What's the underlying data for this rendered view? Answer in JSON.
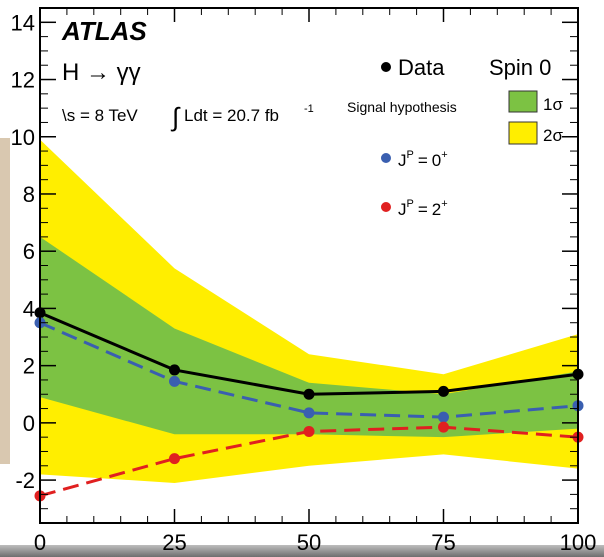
{
  "chart_data": {
    "type": "line",
    "experiment": "ATLAS",
    "process": "H → γγ",
    "energy_text": "\\s = 8 TeV",
    "lumi_text": "Ldt = 20.7 fb",
    "lumi_exp": "-1",
    "spin_label": "Spin 0",
    "signal_hypothesis_label": "Signal hypothesis",
    "x": [
      0,
      25,
      50,
      75,
      100
    ],
    "xlim": [
      0,
      100
    ],
    "ylim": [
      -3.5,
      14.5
    ],
    "x_ticks": [
      "0",
      "25",
      "50",
      "75",
      "100"
    ],
    "y_ticks": [
      "-2",
      "0",
      "2",
      "4",
      "6",
      "8",
      "10",
      "12",
      "14"
    ],
    "series": [
      {
        "name": "Data",
        "values": [
          3.85,
          1.85,
          1.0,
          1.1,
          1.7
        ],
        "color": "#000000",
        "style": "solid"
      },
      {
        "name": "0",
        "sup": "+",
        "values": [
          3.5,
          1.45,
          0.35,
          0.2,
          0.6
        ],
        "color": "#3a5fb0",
        "style": "dashed"
      },
      {
        "name": "2",
        "sup": "+",
        "values": [
          -2.55,
          -1.25,
          -0.3,
          -0.15,
          -0.5
        ],
        "color": "#e02020",
        "style": "dashed"
      }
    ],
    "bands": [
      {
        "name": "2σ",
        "color": "#ffee00",
        "upper": [
          9.9,
          5.4,
          2.4,
          1.7,
          3.1
        ],
        "lower": [
          -1.8,
          -2.1,
          -1.5,
          -1.1,
          -1.6
        ]
      },
      {
        "name": "1σ",
        "color": "#7cc243",
        "upper": [
          6.5,
          3.3,
          1.4,
          1.0,
          1.8
        ],
        "lower": [
          0.9,
          -0.4,
          -0.4,
          -0.5,
          -0.2
        ]
      }
    ],
    "legend_data": "Data",
    "legend_jp_prefix": "J",
    "legend_jp_sup": "P",
    "legend_eq": "=",
    "grid": false
  }
}
